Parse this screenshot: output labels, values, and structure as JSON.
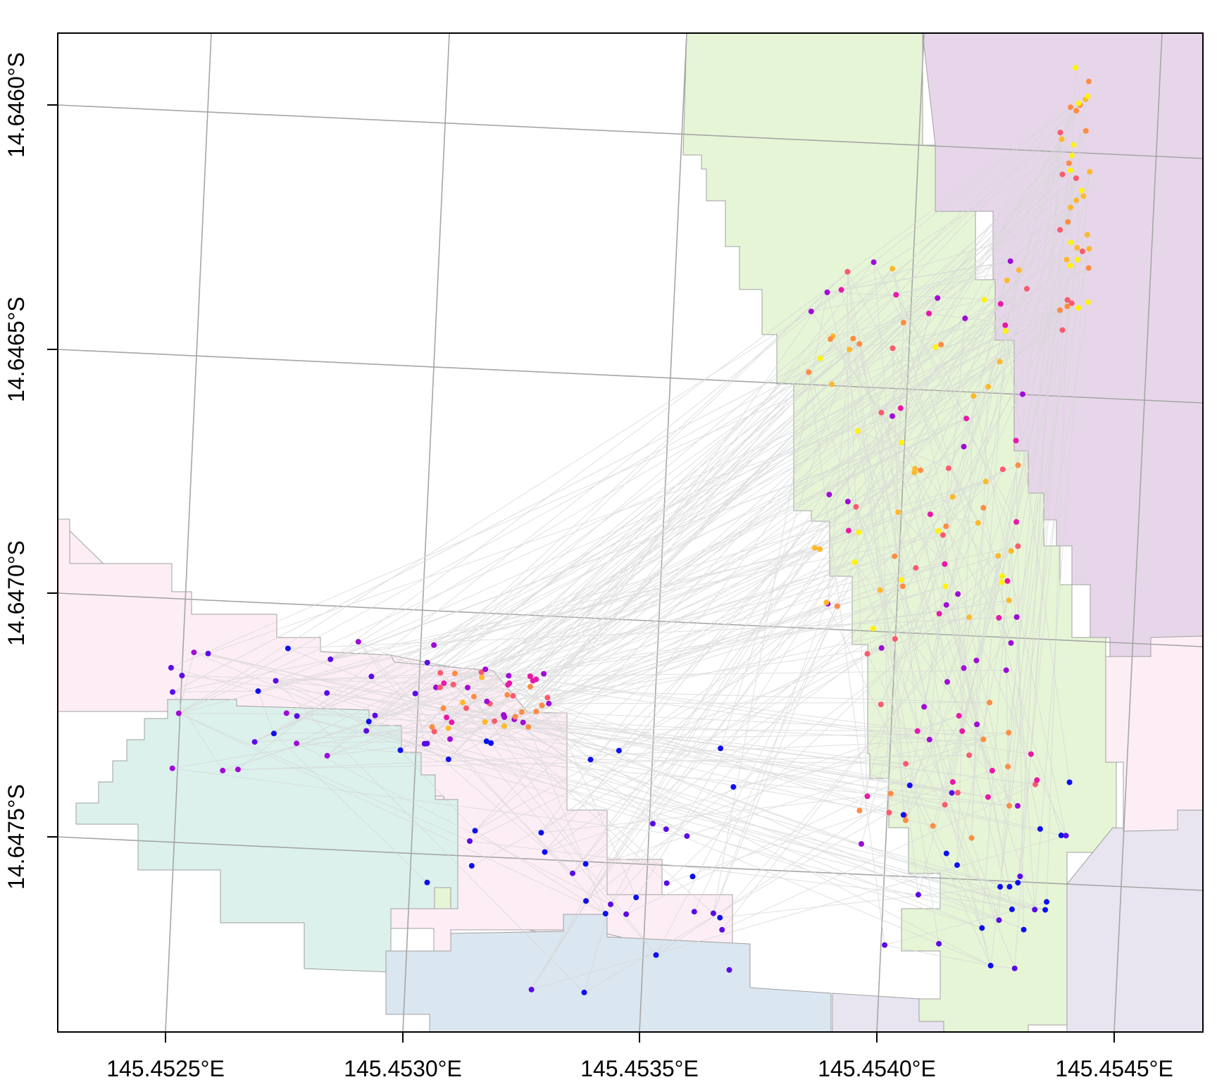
{
  "map": {
    "lon_ticks": [
      {
        "value": 145.4525,
        "label": "145.4525°E"
      },
      {
        "value": 145.453,
        "label": "145.4530°E"
      },
      {
        "value": 145.4535,
        "label": "145.4535°E"
      },
      {
        "value": 145.454,
        "label": "145.4540°E"
      },
      {
        "value": 145.4545,
        "label": "145.4545°E"
      }
    ],
    "lat_ticks": [
      {
        "value": -14.646,
        "label": "14.6460°S"
      },
      {
        "value": -14.6465,
        "label": "14.6465°S"
      },
      {
        "value": -14.647,
        "label": "14.6470°S"
      },
      {
        "value": -14.6475,
        "label": "14.6475°S"
      }
    ],
    "graticule_color": "#a6a6a6",
    "line_color": "#d9d9d9",
    "region_colors": {
      "green": "#e6f5d6",
      "purple": "#e7d6ea",
      "pink": "#fdeef6",
      "teal": "#dcf1ec",
      "blue": "#dae6f0",
      "lavender": "#e8e5f1"
    },
    "point_palette": [
      "#0d0ff0",
      "#5a0be8",
      "#a00bd8",
      "#e818a8",
      "#fb5a6e",
      "#fd8c44",
      "#fdb82c",
      "#fff20a"
    ]
  }
}
